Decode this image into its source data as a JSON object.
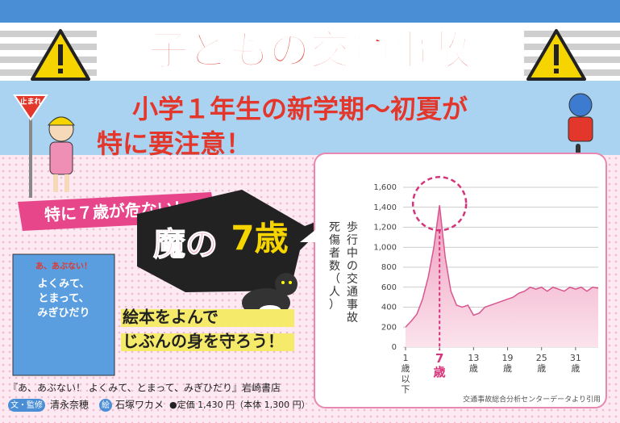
{
  "header": {
    "title": "子どもの交通事故",
    "stop_sign": "止まれ"
  },
  "headline": {
    "lines": [
      "小学１年生の新学期～初夏が",
      "特に要注意！"
    ]
  },
  "badge": "特に７歳が危ない！",
  "callout": {
    "prefix": "魔の",
    "age": "7歳"
  },
  "slogan": [
    "絵本をよんで",
    "じぶんの身を守ろう！"
  ],
  "book": {
    "cover": [
      "あ、あぶない！",
      "よくみて、",
      "とまって、",
      "みぎひだり"
    ],
    "title": "『あ、あぶない！ よくみて、とまって、みぎひだり』岩崎書店",
    "author_role": "文・監修",
    "author": "清永奈穂",
    "illustrator_role": "絵",
    "illustrator": "石塚ワカメ",
    "price": "●定価 1,430 円（本体 1,300 円）"
  },
  "chart_data": {
    "type": "area",
    "y_label": [
      "歩行中の交通事故",
      "死傷者数（人）"
    ],
    "x": [
      1,
      2,
      3,
      4,
      5,
      6,
      7,
      8,
      9,
      10,
      11,
      12,
      13,
      14,
      15,
      16,
      17,
      18,
      19,
      20,
      21,
      22,
      23,
      24,
      25,
      26,
      27,
      28,
      29,
      30,
      31,
      32,
      33,
      34,
      35
    ],
    "values": [
      200,
      260,
      330,
      480,
      700,
      1000,
      1420,
      900,
      560,
      420,
      400,
      420,
      320,
      340,
      400,
      420,
      440,
      460,
      480,
      500,
      540,
      560,
      600,
      580,
      600,
      560,
      600,
      580,
      560,
      600,
      580,
      600,
      560,
      600,
      590
    ],
    "color": "#d9558f",
    "fill": "#f7c9dc",
    "xlim": [
      1,
      35
    ],
    "xticks": [
      {
        "value": 1,
        "label": "1歳以下"
      },
      {
        "value": 7,
        "label": "7歳"
      },
      {
        "value": 13,
        "label": "13歳"
      },
      {
        "value": 19,
        "label": "19歳"
      },
      {
        "value": 25,
        "label": "25歳"
      },
      {
        "value": 31,
        "label": "31歳"
      }
    ],
    "ylim": [
      0,
      1600
    ],
    "yticks": [
      0,
      200,
      400,
      600,
      800,
      {
        "value": 1000,
        "label": "1,000"
      },
      {
        "value": 1200,
        "label": "1,200"
      },
      {
        "value": 1400,
        "label": "1,400"
      },
      {
        "value": 1600,
        "label": "1,600"
      }
    ],
    "grid": true,
    "source": "交通事故総合分析センターデータより引用"
  }
}
